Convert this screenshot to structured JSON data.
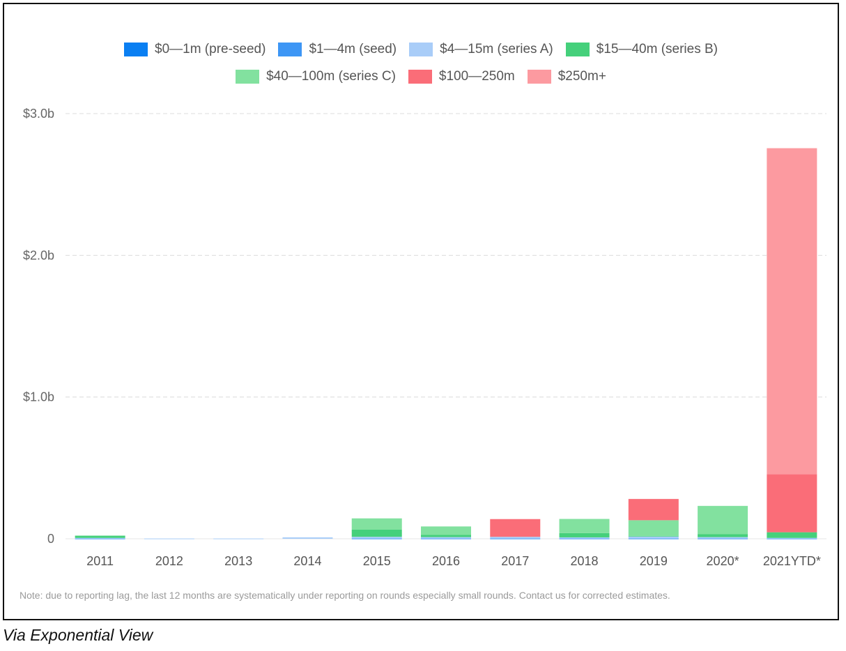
{
  "chart_data": {
    "type": "bar",
    "stacked": true,
    "categories": [
      "2011",
      "2012",
      "2013",
      "2014",
      "2015",
      "2016",
      "2017",
      "2018",
      "2019",
      "2020*",
      "2021YTD*"
    ],
    "ytick_labels": [
      "0",
      "$1.0b",
      "$2.0b",
      "$3.0b"
    ],
    "ylim": [
      0,
      3.0
    ],
    "grid": true,
    "legend_position": "top",
    "series": [
      {
        "name": "$0—1m (pre-seed)",
        "color": "#0a7ff2",
        "values": [
          0,
          0,
          0,
          0,
          0,
          0,
          0,
          0,
          0,
          0,
          0
        ]
      },
      {
        "name": "$1—4m (seed)",
        "color": "#3d96f5",
        "values": [
          0.002,
          0,
          0,
          0,
          0.002,
          0.002,
          0.002,
          0.002,
          0.002,
          0.002,
          0.002
        ]
      },
      {
        "name": "$4—15m (series A)",
        "color": "#a9cdf8",
        "values": [
          0.004,
          0.002,
          0.002,
          0.01,
          0.012,
          0.01,
          0.012,
          0.008,
          0.014,
          0.01,
          0.004
        ]
      },
      {
        "name": "$15—40m (series B)",
        "color": "#45d07b",
        "values": [
          0.016,
          0,
          0,
          0,
          0.05,
          0.015,
          0,
          0.03,
          0.005,
          0.02,
          0.04
        ]
      },
      {
        "name": "$40—100m (series C)",
        "color": "#82e19f",
        "values": [
          0,
          0,
          0,
          0,
          0.08,
          0.06,
          0,
          0.1,
          0.11,
          0.2,
          0
        ]
      },
      {
        "name": "$100—250m",
        "color": "#fa6d78",
        "values": [
          0,
          0,
          0,
          0,
          0,
          0,
          0.125,
          0,
          0.15,
          0,
          0.41
        ]
      },
      {
        "name": "$250m+",
        "color": "#fc9aa0",
        "values": [
          0,
          0,
          0,
          0,
          0,
          0,
          0,
          0,
          0,
          0,
          2.3
        ]
      }
    ]
  },
  "note": "Note: due to reporting lag, the last 12 months are systematically under reporting on rounds especially small rounds. Contact us for corrected estimates.",
  "caption": "Via Exponential View"
}
